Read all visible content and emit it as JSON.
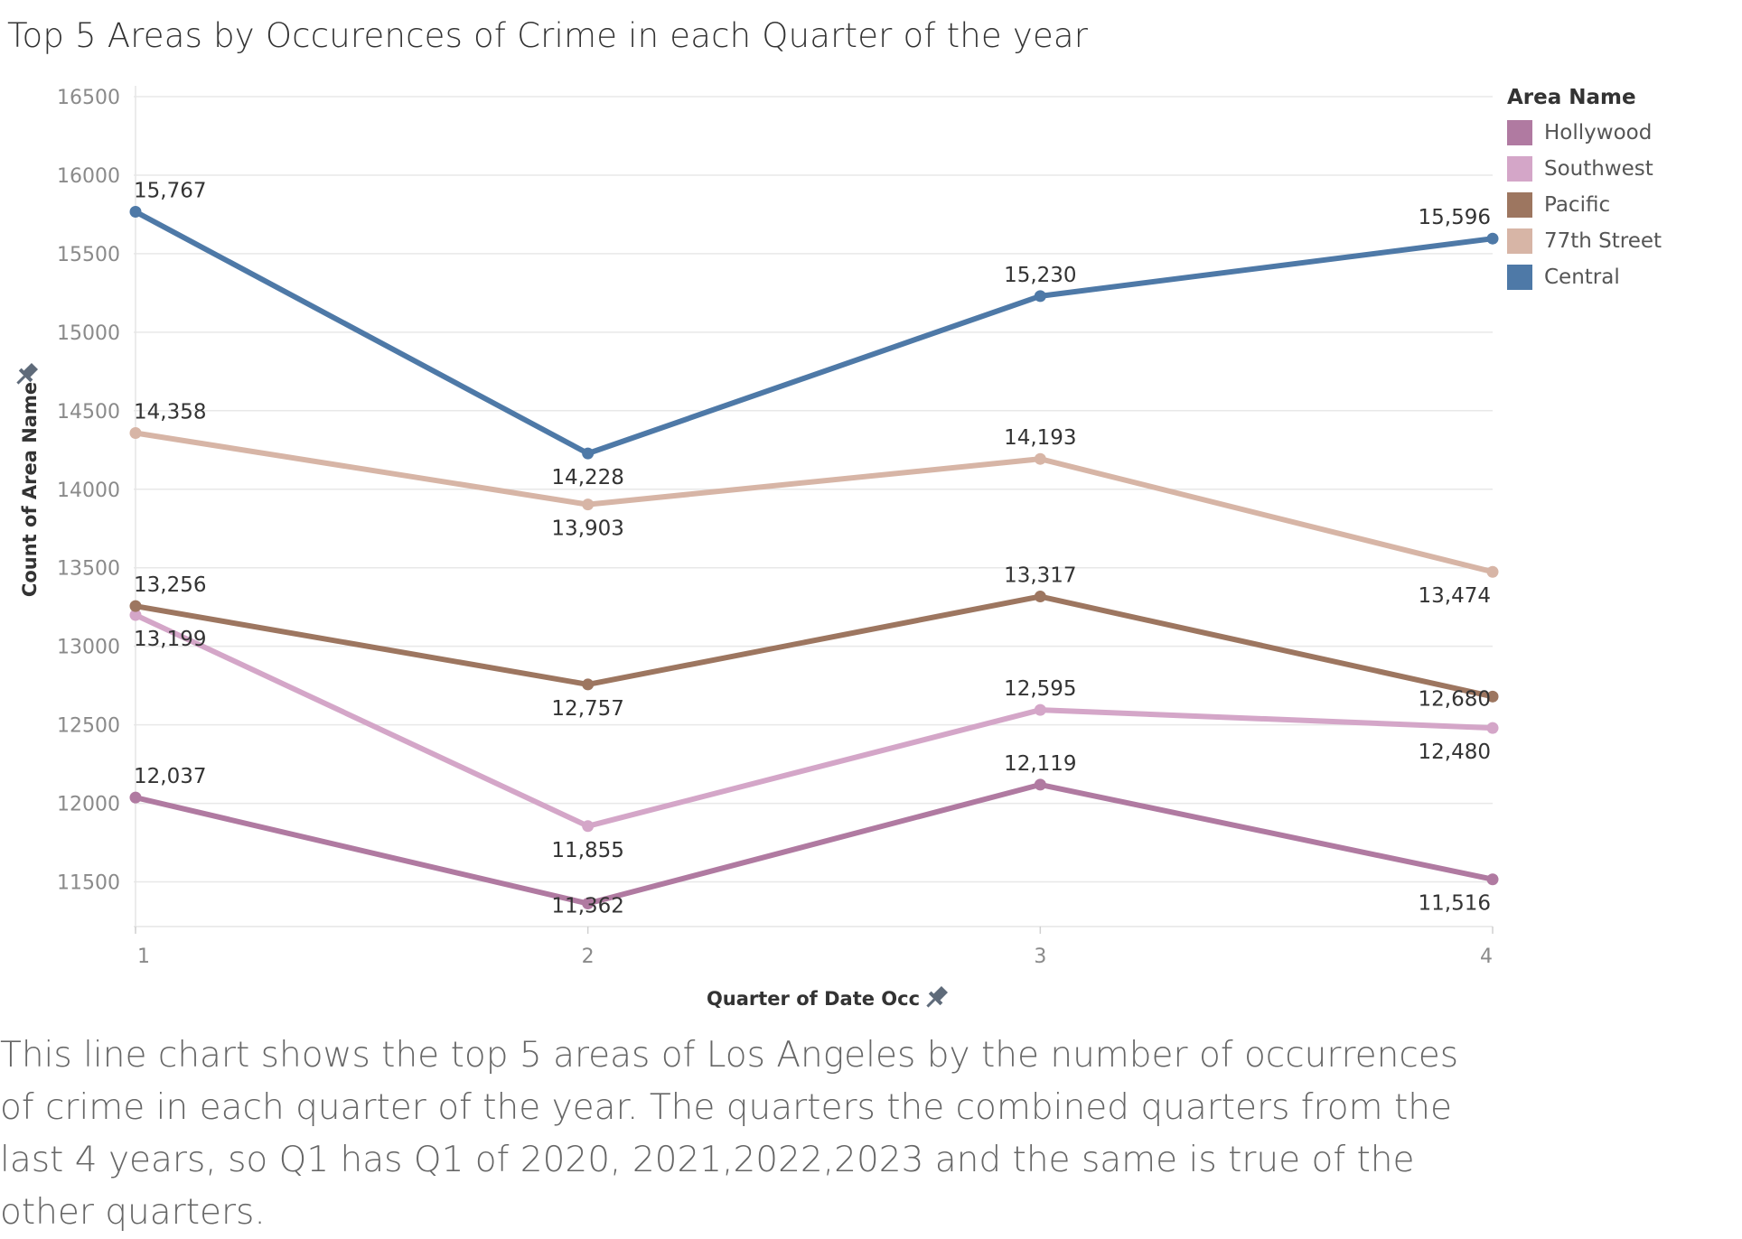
{
  "title": "Top 5 Areas by Occurences of Crime in each Quarter of the year",
  "description": "This line chart shows the top 5 areas of Los Angeles by the number of occurrences of crime in each quarter of the year. The quarters the combined quarters from the last 4 years, so Q1 has Q1 of 2020, 2021,2022,2023 and the same is true of the other quarters.",
  "legend": {
    "title": "Area Name",
    "items": [
      {
        "label": "Hollywood",
        "color": "#b07aa1"
      },
      {
        "label": "Southwest",
        "color": "#d4a6c8"
      },
      {
        "label": "Pacific",
        "color": "#9d7660"
      },
      {
        "label": "77th Street",
        "color": "#d7b5a6"
      },
      {
        "label": "Central",
        "color": "#4e79a7"
      }
    ]
  },
  "chart_data": {
    "type": "line",
    "title": "Top 5 Areas by Occurences of Crime in each Quarter of the year",
    "xlabel": "Quarter of Date Occ",
    "ylabel": "Count of Area Name",
    "x": [
      1,
      2,
      3,
      4
    ],
    "x_tick_labels": [
      "1",
      "2",
      "3",
      "4"
    ],
    "y_ticks": [
      11500,
      12000,
      12500,
      13000,
      13500,
      14000,
      14500,
      15000,
      15500,
      16000,
      16500
    ],
    "ylim": [
      11250,
      16500
    ],
    "grid": true,
    "legend_position": "right",
    "series": [
      {
        "name": "Hollywood",
        "color": "#b07aa1",
        "values": [
          12037,
          11362,
          12119,
          11516
        ],
        "labels": [
          "12,037",
          "11,362",
          "12,119",
          "11,516"
        ]
      },
      {
        "name": "Southwest",
        "color": "#d4a6c8",
        "values": [
          13199,
          11855,
          12595,
          12480
        ],
        "labels": [
          "13,199",
          "11,855",
          "12,595",
          "12,480"
        ]
      },
      {
        "name": "Pacific",
        "color": "#9d7660",
        "values": [
          13256,
          12757,
          13317,
          12680
        ],
        "labels": [
          "13,256",
          "12,757",
          "13,317",
          "12,680"
        ]
      },
      {
        "name": "77th Street",
        "color": "#d7b5a6",
        "values": [
          14358,
          13903,
          14193,
          13474
        ],
        "labels": [
          "14,358",
          "13,903",
          "14,193",
          "13,474"
        ]
      },
      {
        "name": "Central",
        "color": "#4e79a7",
        "values": [
          15767,
          14228,
          15230,
          15596
        ],
        "labels": [
          "15,767",
          "14,228",
          "15,230",
          "15,596"
        ]
      }
    ]
  }
}
